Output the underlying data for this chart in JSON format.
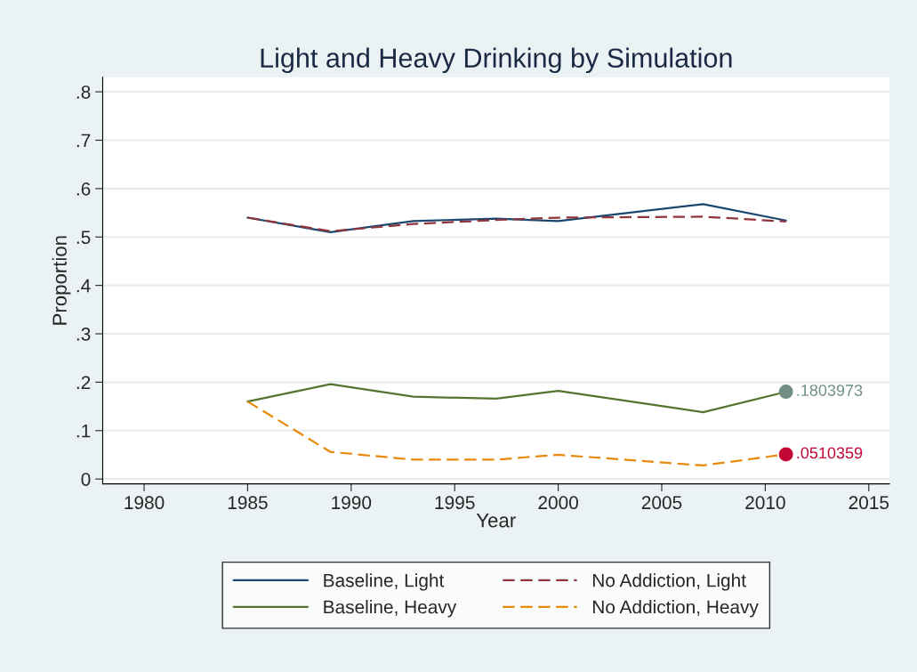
{
  "chart_data": {
    "type": "line",
    "title": "Light and Heavy Drinking by Simulation",
    "xlabel": "Year",
    "ylabel": "Proportion",
    "x": [
      1985,
      1989,
      1993,
      1997,
      2000,
      2007,
      2011
    ],
    "series": [
      {
        "name": "Baseline, Light",
        "color": "#1a476f",
        "line_style": "solid",
        "values": [
          0.54,
          0.51,
          0.533,
          0.538,
          0.533,
          0.568,
          0.534
        ]
      },
      {
        "name": "No Addiction, Light",
        "color": "#90353b",
        "line_style": "dashed",
        "values": [
          0.54,
          0.512,
          0.527,
          0.535,
          0.54,
          0.542,
          0.532
        ]
      },
      {
        "name": "Baseline, Heavy",
        "color": "#55752f",
        "line_style": "solid",
        "values": [
          0.16,
          0.196,
          0.17,
          0.166,
          0.182,
          0.138,
          0.18
        ]
      },
      {
        "name": "No Addiction, Heavy",
        "color": "#e8890c",
        "line_style": "dashed",
        "values": [
          0.16,
          0.056,
          0.04,
          0.04,
          0.05,
          0.028,
          0.051
        ]
      },
      {
        "type": "scatter",
        "x": [
          2011
        ],
        "color": "#6e8e84",
        "marker": "circle",
        "values": [
          0.1803973
        ],
        "value_labels": [
          ".1803973"
        ]
      },
      {
        "type": "scatter",
        "x": [
          2011
        ],
        "color": "#c10534",
        "marker": "circle",
        "values": [
          0.0510359
        ],
        "value_labels": [
          ".0510359"
        ]
      }
    ],
    "xlim": [
      1978,
      2016
    ],
    "xticks": [
      1980,
      1985,
      1990,
      1995,
      2000,
      2005,
      2010,
      2015
    ],
    "ylim": [
      -0.01,
      0.83
    ],
    "yticks": [
      {
        "value": 0,
        "label": "0"
      },
      {
        "value": 0.1,
        "label": ".1"
      },
      {
        "value": 0.2,
        "label": ".2"
      },
      {
        "value": 0.3,
        "label": ".3"
      },
      {
        "value": 0.4,
        "label": ".4"
      },
      {
        "value": 0.5,
        "label": ".5"
      },
      {
        "value": 0.6,
        "label": ".6"
      },
      {
        "value": 0.7,
        "label": ".7"
      },
      {
        "value": 0.8,
        "label": ".8"
      }
    ],
    "grid": "y",
    "legend": "bottom"
  }
}
